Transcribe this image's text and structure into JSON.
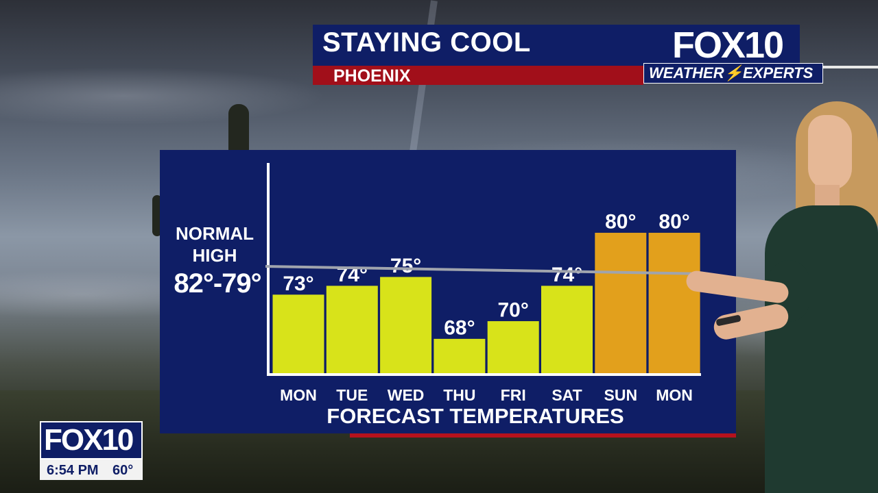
{
  "header": {
    "title": "STAYING COOL",
    "subtitle": "PHOENIX",
    "logo": "FOX10",
    "logo_tagline_left": "WEATHER",
    "logo_tagline_right": "EXPERTS"
  },
  "normal_high": {
    "line1": "NORMAL",
    "line2": "HIGH",
    "range": "82°-79°",
    "values": [
      82,
      79
    ]
  },
  "chart_data": {
    "type": "bar",
    "title": "FORECAST TEMPERATURES",
    "categories": [
      "MON",
      "TUE",
      "WED",
      "THU",
      "FRI",
      "SAT",
      "SUN",
      "MON"
    ],
    "values": [
      73,
      74,
      75,
      68,
      70,
      74,
      80,
      80
    ],
    "labels": [
      "73°",
      "74°",
      "75°",
      "68°",
      "70°",
      "74°",
      "80°",
      "80°"
    ],
    "colors": [
      "#d8e31a",
      "#d8e31a",
      "#d8e31a",
      "#d8e31a",
      "#d8e31a",
      "#d8e31a",
      "#e2a01c",
      "#e2a01c"
    ],
    "reference_line": {
      "start": 82,
      "end": 79
    },
    "ylim": [
      64,
      86
    ]
  },
  "bug": {
    "logo": "FOX10",
    "time": "6:54 PM",
    "temp": "60°"
  },
  "colors": {
    "navy": "#0f1e66",
    "red": "#a10f1a",
    "bar_yellow": "#d8e31a",
    "bar_orange": "#e2a01c"
  }
}
